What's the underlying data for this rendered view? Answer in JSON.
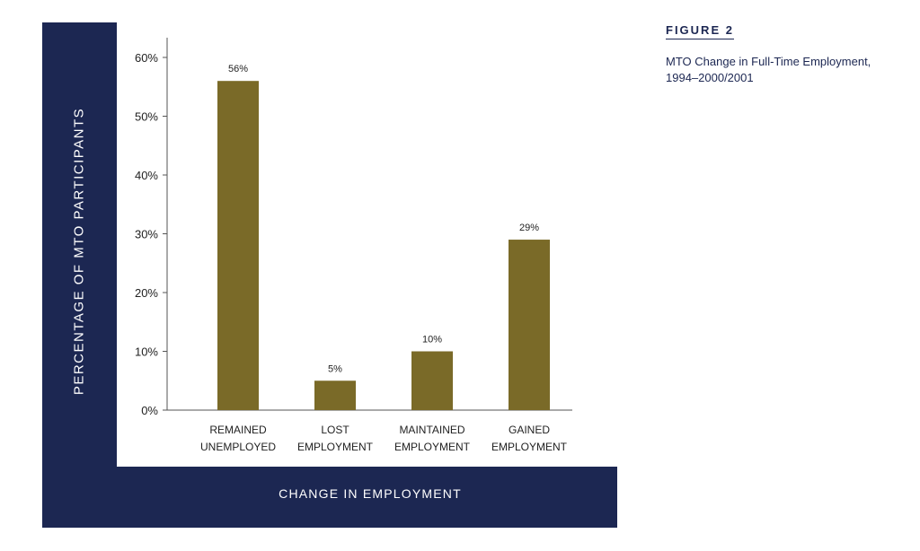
{
  "figure": {
    "number_label": "FIGURE 2",
    "title_lines": [
      "MTO Change in Full-Time Employment,",
      "1994–2000/2001"
    ]
  },
  "colors": {
    "frame": "#1c2752",
    "bar": "#7a6a28",
    "panel": "#ffffff"
  },
  "chart_data": {
    "type": "bar",
    "categories": [
      [
        "REMAINED",
        "UNEMPLOYED"
      ],
      [
        "LOST",
        "EMPLOYMENT"
      ],
      [
        "MAINTAINED",
        "EMPLOYMENT"
      ],
      [
        "GAINED",
        "EMPLOYMENT"
      ]
    ],
    "values": [
      56,
      5,
      10,
      29
    ],
    "data_labels": [
      "56%",
      "5%",
      "10%",
      "29%"
    ],
    "ylabel": "PERCENTAGE OF MTO PARTICIPANTS",
    "xlabel": "CHANGE IN EMPLOYMENT",
    "ylim": [
      0,
      60
    ],
    "yticks": [
      0,
      10,
      20,
      30,
      40,
      50,
      60
    ],
    "ytick_labels": [
      "0%",
      "10%",
      "20%",
      "30%",
      "40%",
      "50%",
      "60%"
    ],
    "grid": false,
    "legend": "none"
  }
}
